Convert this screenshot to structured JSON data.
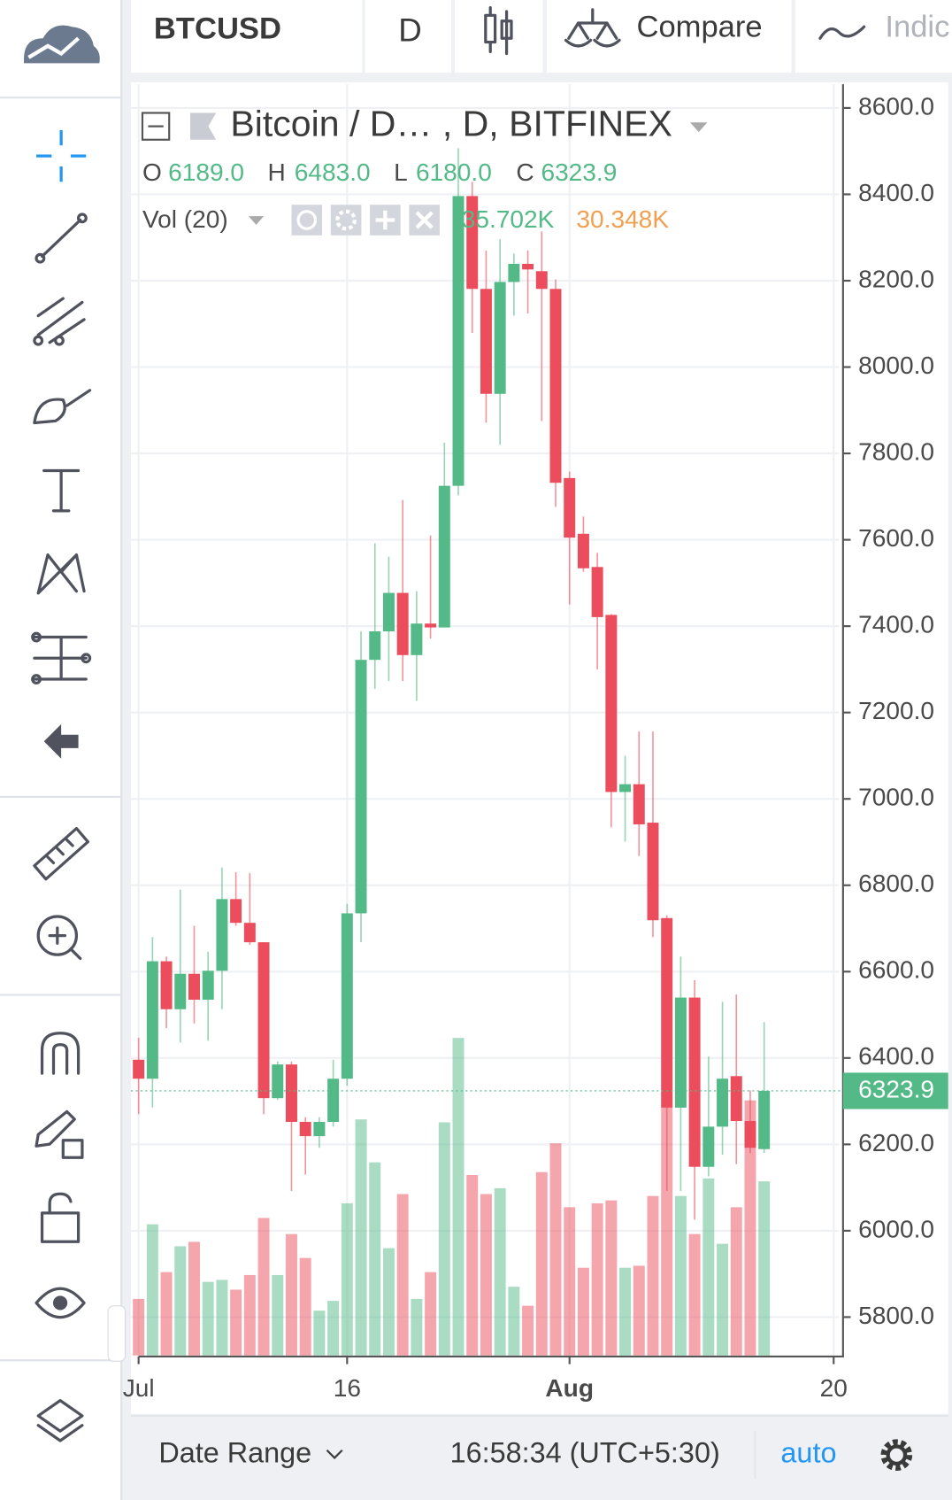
{
  "toolbar": {
    "symbol": "BTCUSD",
    "interval": "D",
    "compare": "Compare",
    "indicators": "Indic"
  },
  "legend": {
    "title": "Bitcoin / D… , D, BITFINEX",
    "o": "O",
    "h": "H",
    "l": "L",
    "c": "C",
    "open": "6189.0",
    "high": "6483.0",
    "low": "6180.0",
    "close": "6323.9",
    "volume_title": "Vol (20)",
    "volume": "35.702K",
    "volume_ma": "30.348K"
  },
  "chart_data": {
    "type": "candlestick",
    "open": [
      6396,
      6352,
      6624,
      6513,
      6595,
      6535,
      6602,
      6768,
      6713,
      6668,
      6307,
      6385,
      6252,
      6219,
      6252,
      6352,
      6735,
      7322,
      7388,
      7477,
      7333,
      7406,
      7397,
      7725,
      8396,
      8181,
      7938,
      8197,
      8239,
      8222,
      8181,
      7743,
      7614,
      7537,
      7426,
      7016,
      7034,
      6945,
      6724,
      6285,
      6540,
      6148,
      6241,
      6358,
      6254,
      6189
    ],
    "high": [
      6447,
      6680,
      6635,
      6790,
      6706,
      6646,
      6841,
      6830,
      6828,
      6668,
      6392,
      6392,
      6263,
      6263,
      6396,
      6757,
      7388,
      7592,
      7561,
      7692,
      7481,
      7610,
      7825,
      8507,
      8429,
      8270,
      8296,
      8263,
      8270,
      8314,
      8203,
      7758,
      7654,
      7570,
      7428,
      7100,
      7156,
      7156,
      6730,
      6635,
      6580,
      6403,
      6530,
      6547,
      6325,
      6483
    ],
    "low": [
      6270,
      6285,
      6469,
      6436,
      6480,
      6440,
      6513,
      6706,
      6662,
      6270,
      6303,
      6092,
      6130,
      6192,
      6241,
      6336,
      6668,
      7255,
      7273,
      7273,
      7227,
      7371,
      7400,
      7703,
      8079,
      7871,
      7820,
      8119,
      8124,
      7875,
      7676,
      7450,
      7526,
      7300,
      6934,
      6901,
      6868,
      6680,
      6092,
      6092,
      6026,
      6126,
      6176,
      6154,
      6180,
      6180
    ],
    "close": [
      6352,
      6624,
      6513,
      6595,
      6535,
      6602,
      6768,
      6713,
      6668,
      6307,
      6385,
      6252,
      6219,
      6252,
      6352,
      6735,
      7322,
      7388,
      7477,
      7333,
      7406,
      7397,
      7725,
      8396,
      8181,
      7938,
      8197,
      8239,
      8226,
      8181,
      7732,
      7605,
      7534,
      7421,
      7016,
      7034,
      6941,
      6719,
      6285,
      6540,
      6148,
      6241,
      6352,
      6254,
      6192,
      6323.9
    ],
    "volume": [
      11.6,
      26.9,
      17.1,
      22.4,
      23.3,
      15.1,
      15.5,
      13.5,
      16.5,
      28.2,
      16.5,
      24.9,
      20.0,
      9.2,
      11.2,
      31.2,
      48.4,
      39.6,
      22.0,
      33.1,
      11.6,
      17.1,
      47.8,
      65.1,
      37.0,
      33.1,
      34.3,
      14.1,
      10.2,
      37.6,
      43.5,
      30.4,
      18.0,
      31.2,
      31.8,
      18.0,
      18.4,
      32.7,
      50.8,
      32.7,
      24.9,
      36.3,
      22.9,
      30.4,
      52.3,
      35.702
    ],
    "up_color": "#53b987",
    "down_color": "#eb4d5c",
    "ylim": [
      5711,
      8655
    ],
    "yticks": [
      {
        "value": 5800,
        "label": "5800.0"
      },
      {
        "value": 6000,
        "label": "6000.0"
      },
      {
        "value": 6200,
        "label": "6200.0"
      },
      {
        "value": 6400,
        "label": "6400.0"
      },
      {
        "value": 6600,
        "label": "6600.0"
      },
      {
        "value": 6800,
        "label": "6800.0"
      },
      {
        "value": 7000,
        "label": "7000.0"
      },
      {
        "value": 7200,
        "label": "7200.0"
      },
      {
        "value": 7400,
        "label": "7400.0"
      },
      {
        "value": 7600,
        "label": "7600.0"
      },
      {
        "value": 7800,
        "label": "7800.0"
      },
      {
        "value": 8000,
        "label": "8000.0"
      },
      {
        "value": 8200,
        "label": "8200.0"
      },
      {
        "value": 8400,
        "label": "8400.0"
      },
      {
        "value": 8600,
        "label": "8600.0"
      }
    ],
    "xlim": [
      -0.55,
      50.4
    ],
    "xticks": [
      {
        "value": 0,
        "label": "Jul"
      },
      {
        "value": 15,
        "label": "16"
      },
      {
        "value": 31,
        "label": "Aug"
      },
      {
        "value": 50,
        "label": "20"
      }
    ],
    "grid": true
  },
  "bottom_bar": {
    "date_range": "Date Range",
    "time": "16:58:34 (UTC+5:30)",
    "scale": "auto"
  }
}
